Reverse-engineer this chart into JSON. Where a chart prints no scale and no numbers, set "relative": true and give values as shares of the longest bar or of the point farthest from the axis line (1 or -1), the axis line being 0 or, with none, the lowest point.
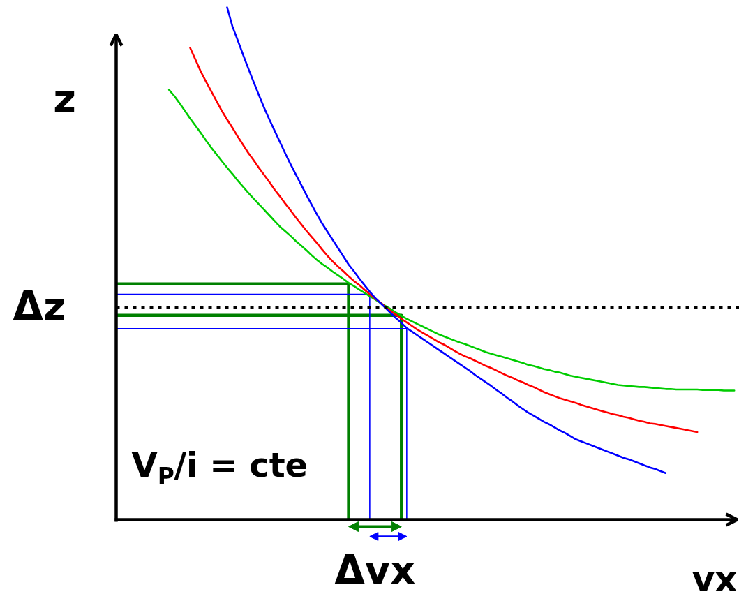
{
  "chart_data": {
    "type": "line",
    "relative": true,
    "xlabel": "vx",
    "ylabel": "z",
    "categories": [
      null,
      null,
      null,
      null,
      null,
      null,
      null,
      null,
      null,
      null,
      null,
      null,
      null,
      null,
      null,
      null,
      null,
      null,
      null,
      null,
      null,
      null,
      null,
      null,
      null,
      null,
      null,
      null,
      null,
      null,
      null,
      null,
      null,
      null,
      null,
      null,
      null,
      null,
      null,
      null,
      null,
      null,
      null,
      null,
      null,
      null,
      null,
      null,
      null,
      null,
      null,
      null,
      null,
      null,
      null,
      null,
      null,
      null,
      null,
      null,
      null,
      null,
      null,
      null,
      null,
      null,
      null,
      null,
      null,
      null,
      null,
      null,
      null,
      null,
      null,
      null,
      null,
      null,
      null,
      null,
      null,
      null,
      null,
      null,
      null,
      null,
      null,
      null,
      null,
      null,
      null,
      null,
      null,
      null,
      null,
      null,
      null,
      null,
      null,
      null,
      null,
      null,
      null,
      null,
      null,
      null,
      null,
      null,
      null,
      null,
      null,
      null,
      null,
      null,
      null,
      null,
      null,
      null
    ],
    "series": [
      {
        "type": "step",
        "color": "#008000",
        "values": [
          0.46,
          0.46,
          0.46,
          0.46,
          0.46,
          0.46,
          0.46,
          0.46,
          0.46,
          0.46,
          0.46,
          0.46,
          0.46,
          0.46,
          0.46,
          0.46,
          0.46,
          0.46,
          0.46,
          0.46,
          0.46,
          0.46,
          0.46,
          0.46,
          0.46,
          0.46,
          0.46,
          0.46,
          0.46,
          0.46,
          0.46,
          0.46,
          0.46,
          0.46,
          0.46,
          0.46,
          0.46,
          0.46,
          0.46,
          0.46,
          0.46,
          0.46,
          0.46,
          0.46,
          0,
          null,
          null,
          null,
          null,
          null,
          null,
          null,
          null,
          null,
          null,
          null,
          null,
          null,
          null,
          null,
          null,
          null,
          null,
          null,
          null,
          null,
          null,
          null,
          null,
          null,
          null,
          null,
          null,
          null,
          null,
          null,
          null,
          null,
          null,
          null,
          null,
          null,
          null,
          null,
          null,
          null,
          null,
          null,
          null,
          null,
          null,
          null,
          null,
          null,
          null,
          null,
          null,
          null,
          null,
          null,
          null,
          null,
          null,
          null,
          null,
          null,
          null,
          null,
          null,
          null,
          null,
          null,
          null,
          null,
          null,
          null,
          null,
          null
        ]
      },
      {
        "type": "step",
        "color": "#008000",
        "values": [
          0.399,
          0.399,
          0.399,
          0.399,
          0.399,
          0.399,
          0.399,
          0.399,
          0.399,
          0.399,
          0.399,
          0.399,
          0.399,
          0.399,
          0.399,
          0.399,
          0.399,
          0.399,
          0.399,
          0.399,
          0.399,
          0.399,
          0.399,
          0.399,
          0.399,
          0.399,
          0.399,
          0.399,
          0.399,
          0.399,
          0.399,
          0.399,
          0.399,
          0.399,
          0.399,
          0.399,
          0.399,
          0.399,
          0.399,
          0.399,
          0.399,
          0.399,
          0.399,
          0.399,
          0.399,
          0.399,
          0.399,
          0.399,
          0.399,
          0.399,
          0.399,
          0.399,
          0.399,
          0.399,
          0,
          null,
          null,
          null,
          null,
          null,
          null,
          null,
          null,
          null,
          null,
          null,
          null,
          null,
          null,
          null,
          null,
          null,
          null,
          null,
          null,
          null,
          null,
          null,
          null,
          null,
          null,
          null,
          null,
          null,
          null,
          null,
          null,
          null,
          null,
          null,
          null,
          null,
          null,
          null,
          null,
          null,
          null,
          null,
          null,
          null,
          null,
          null,
          null,
          null,
          null,
          null,
          null,
          null,
          null,
          null,
          null,
          null,
          null,
          null,
          null,
          null,
          null,
          null
        ]
      },
      {
        "type": "step",
        "color": "#0000ff",
        "values": [
          0.44,
          0.44,
          0.44,
          0.44,
          0.44,
          0.44,
          0.44,
          0.44,
          0.44,
          0.44,
          0.44,
          0.44,
          0.44,
          0.44,
          0.44,
          0.44,
          0.44,
          0.44,
          0.44,
          0.44,
          0.44,
          0.44,
          0.44,
          0.44,
          0.44,
          0.44,
          0.44,
          0.44,
          0.44,
          0.44,
          0.44,
          0.44,
          0.44,
          0.44,
          0.44,
          0.44,
          0.44,
          0.44,
          0.44,
          0.44,
          0.44,
          0.44,
          0.44,
          0.44,
          0.44,
          0.44,
          0.44,
          0.44,
          0,
          null,
          null,
          null,
          null,
          null,
          null,
          null,
          null,
          null,
          null,
          null,
          null,
          null,
          null,
          null,
          null,
          null,
          null,
          null,
          null,
          null,
          null,
          null,
          null,
          null,
          null,
          null,
          null,
          null,
          null,
          null,
          null,
          null,
          null,
          null,
          null,
          null,
          null,
          null,
          null,
          null,
          null,
          null,
          null,
          null,
          null,
          null,
          null,
          null,
          null,
          null,
          null,
          null,
          null,
          null,
          null,
          null,
          null,
          null,
          null,
          null,
          null,
          null,
          null,
          null,
          null,
          null,
          null,
          null
        ]
      },
      {
        "type": "step",
        "color": "#0000ff",
        "values": [
          0.373,
          0.373,
          0.373,
          0.373,
          0.373,
          0.373,
          0.373,
          0.373,
          0.373,
          0.373,
          0.373,
          0.373,
          0.373,
          0.373,
          0.373,
          0.373,
          0.373,
          0.373,
          0.373,
          0.373,
          0.373,
          0.373,
          0.373,
          0.373,
          0.373,
          0.373,
          0.373,
          0.373,
          0.373,
          0.373,
          0.373,
          0.373,
          0.373,
          0.373,
          0.373,
          0.373,
          0.373,
          0.373,
          0.373,
          0.373,
          0.373,
          0.373,
          0.373,
          0.373,
          0.373,
          0.373,
          0.373,
          0.373,
          0.373,
          0.373,
          0.373,
          0.373,
          0.373,
          0.373,
          0.373,
          0,
          null,
          null,
          null,
          null,
          null,
          null,
          null,
          null,
          null,
          null,
          null,
          null,
          null,
          null,
          null,
          null,
          null,
          null,
          null,
          null,
          null,
          null,
          null,
          null,
          null,
          null,
          null,
          null,
          null,
          null,
          null,
          null,
          null,
          null,
          null,
          null,
          null,
          null,
          null,
          null,
          null,
          null,
          null,
          null,
          null,
          null,
          null,
          null,
          null,
          null,
          null,
          null,
          null,
          null,
          null,
          null,
          null,
          null,
          null,
          null,
          null,
          null
        ]
      },
      {
        "color": "#00cc00",
        "values": [
          null,
          null,
          null,
          null,
          null,
          null,
          null,
          null,
          null,
          null,
          0.839,
          0.827,
          0.813,
          0.798,
          0.783,
          0.769,
          0.755,
          0.74,
          0.726,
          0.713,
          0.7,
          0.687,
          0.675,
          0.662,
          0.65,
          0.638,
          0.627,
          0.616,
          0.605,
          0.594,
          0.583,
          0.572,
          0.563,
          0.554,
          0.544,
          0.535,
          0.526,
          0.516,
          0.507,
          0.499,
          0.492,
          0.484,
          0.477,
          0.47,
          0.462,
          0.456,
          0.449,
          0.443,
          0.436,
          0.43,
          0.423,
          0.417,
          0.411,
          0.404,
          0.398,
          0.392,
          0.387,
          0.382,
          0.377,
          0.372,
          0.367,
          0.362,
          0.358,
          0.354,
          0.35,
          0.346,
          0.343,
          0.339,
          0.335,
          0.331,
          0.327,
          0.324,
          0.321,
          0.318,
          0.315,
          0.312,
          0.309,
          0.306,
          0.302,
          0.3,
          0.297,
          0.294,
          0.292,
          0.289,
          0.287,
          0.284,
          0.281,
          0.279,
          0.277,
          0.275,
          0.273,
          0.271,
          0.269,
          0.267,
          0.265,
          0.263,
          0.262,
          0.261,
          0.26,
          0.259,
          0.259,
          0.258,
          0.257,
          0.256,
          0.255,
          0.255,
          0.254,
          0.254,
          0.254,
          0.254,
          0.254,
          0.253,
          0.253,
          0.253,
          0.253,
          0.252,
          0.252,
          0.252
        ]
      },
      {
        "color": "#ff0000",
        "values": [
          null,
          null,
          null,
          null,
          null,
          null,
          null,
          null,
          null,
          null,
          null,
          null,
          null,
          null,
          0.921,
          0.898,
          0.875,
          0.855,
          0.836,
          0.817,
          0.798,
          0.781,
          0.765,
          0.748,
          0.732,
          0.716,
          0.702,
          0.687,
          0.673,
          0.659,
          0.644,
          0.631,
          0.617,
          0.604,
          0.59,
          0.577,
          0.564,
          0.552,
          0.54,
          0.527,
          0.515,
          0.504,
          0.494,
          0.485,
          0.475,
          0.466,
          0.458,
          0.449,
          0.44,
          0.432,
          0.424,
          0.415,
          0.407,
          0.4,
          0.392,
          0.385,
          0.378,
          0.371,
          0.365,
          0.359,
          0.353,
          0.347,
          0.342,
          0.336,
          0.33,
          0.324,
          0.319,
          0.315,
          0.31,
          0.305,
          0.3,
          0.296,
          0.291,
          0.286,
          0.281,
          0.277,
          0.272,
          0.268,
          0.263,
          0.259,
          0.254,
          0.249,
          0.245,
          0.241,
          0.237,
          0.234,
          0.231,
          0.228,
          0.224,
          0.221,
          0.218,
          0.215,
          0.212,
          0.209,
          0.206,
          0.204,
          0.201,
          0.199,
          0.196,
          0.193,
          0.191,
          0.188,
          0.187,
          0.185,
          0.183,
          0.181,
          0.179,
          0.177,
          0.175,
          0.173,
          0.171,
          null,
          null,
          null,
          null,
          null,
          null,
          null
        ]
      },
      {
        "color": "#0000ff",
        "values": [
          null,
          null,
          null,
          null,
          null,
          null,
          null,
          null,
          null,
          null,
          null,
          null,
          null,
          null,
          null,
          null,
          null,
          null,
          null,
          null,
          null,
          1.0,
          0.963,
          0.936,
          0.908,
          0.881,
          0.855,
          0.829,
          0.804,
          0.781,
          0.759,
          0.737,
          0.715,
          0.694,
          0.674,
          0.654,
          0.634,
          0.615,
          0.596,
          0.578,
          0.562,
          0.546,
          0.53,
          0.514,
          0.498,
          0.485,
          0.471,
          0.458,
          0.445,
          0.433,
          0.423,
          0.413,
          0.403,
          0.393,
          0.384,
          0.374,
          0.367,
          0.36,
          0.353,
          0.346,
          0.339,
          0.332,
          0.325,
          0.318,
          0.311,
          0.304,
          0.297,
          0.29,
          0.282,
          0.275,
          0.268,
          0.261,
          0.253,
          0.246,
          0.238,
          0.231,
          0.223,
          0.216,
          0.209,
          0.203,
          0.197,
          0.191,
          0.186,
          0.18,
          0.174,
          0.169,
          0.163,
          0.157,
          0.153,
          0.149,
          0.145,
          0.141,
          0.137,
          0.133,
          0.129,
          0.125,
          0.121,
          0.118,
          0.114,
          0.11,
          0.106,
          0.102,
          0.099,
          0.095,
          0.091,
          null,
          null,
          null,
          null,
          null,
          null,
          null,
          null,
          null,
          null,
          null,
          null,
          null
        ]
      }
    ],
    "ref_lines": [
      {
        "axis": "y",
        "value": 0.414,
        "color": "#000000",
        "line_style": "dotted"
      }
    ],
    "annotations": [
      "Δz",
      "Δvx",
      "V$_{P}$/i = cte"
    ]
  }
}
